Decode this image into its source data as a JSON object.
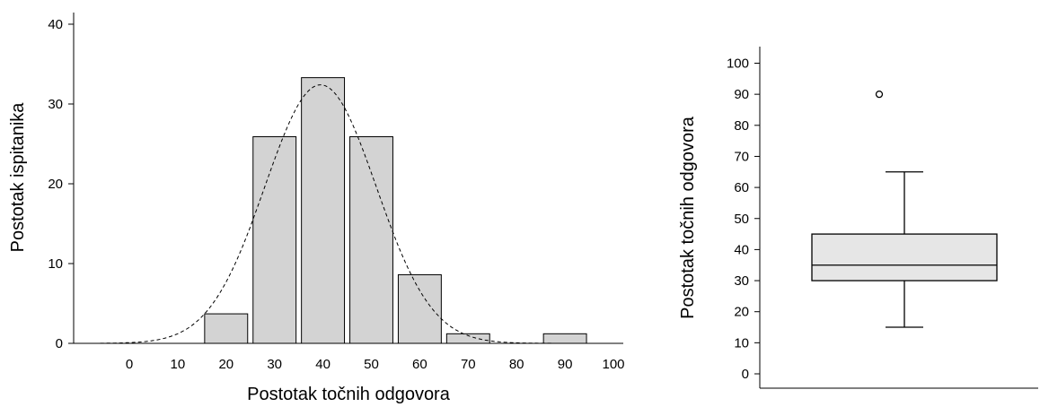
{
  "chart_data": [
    {
      "type": "bar",
      "subtype": "histogram",
      "xlabel": "Postotak točnih odgovora",
      "ylabel": "Postotak ispitanika",
      "x_ticks": [
        "0",
        "10",
        "20",
        "30",
        "40",
        "50",
        "60",
        "70",
        "80",
        "90",
        "100"
      ],
      "y_ticks": [
        "0",
        "10",
        "20",
        "30",
        "40"
      ],
      "xlim": [
        -10,
        100
      ],
      "ylim": [
        0,
        40
      ],
      "bin_width": 10,
      "bins": [
        {
          "center": 20,
          "value": 3.7
        },
        {
          "center": 30,
          "value": 25.9
        },
        {
          "center": 40,
          "value": 33.3
        },
        {
          "center": 50,
          "value": 25.9
        },
        {
          "center": 60,
          "value": 8.6
        },
        {
          "center": 70,
          "value": 1.2
        },
        {
          "center": 90,
          "value": 1.2
        }
      ],
      "normal_curve": {
        "mean": 39.5,
        "sd": 11.5,
        "peak": 32.4,
        "style": "dashed"
      },
      "grid": false,
      "colors": {
        "bar_fill": "#d3d3d3",
        "bar_stroke": "#000000",
        "curve": "#000000"
      }
    },
    {
      "type": "box",
      "ylabel": "Postotak točnih odgovora",
      "y_ticks": [
        "0",
        "10",
        "20",
        "30",
        "40",
        "50",
        "60",
        "70",
        "80",
        "90",
        "100"
      ],
      "ylim": [
        0,
        100
      ],
      "box": {
        "whisker_low": 15,
        "q1": 30,
        "median": 35,
        "q3": 45,
        "whisker_high": 65
      },
      "outliers": [
        90
      ],
      "grid": false,
      "colors": {
        "box_fill": "#e6e6e6",
        "stroke": "#000000"
      }
    }
  ]
}
